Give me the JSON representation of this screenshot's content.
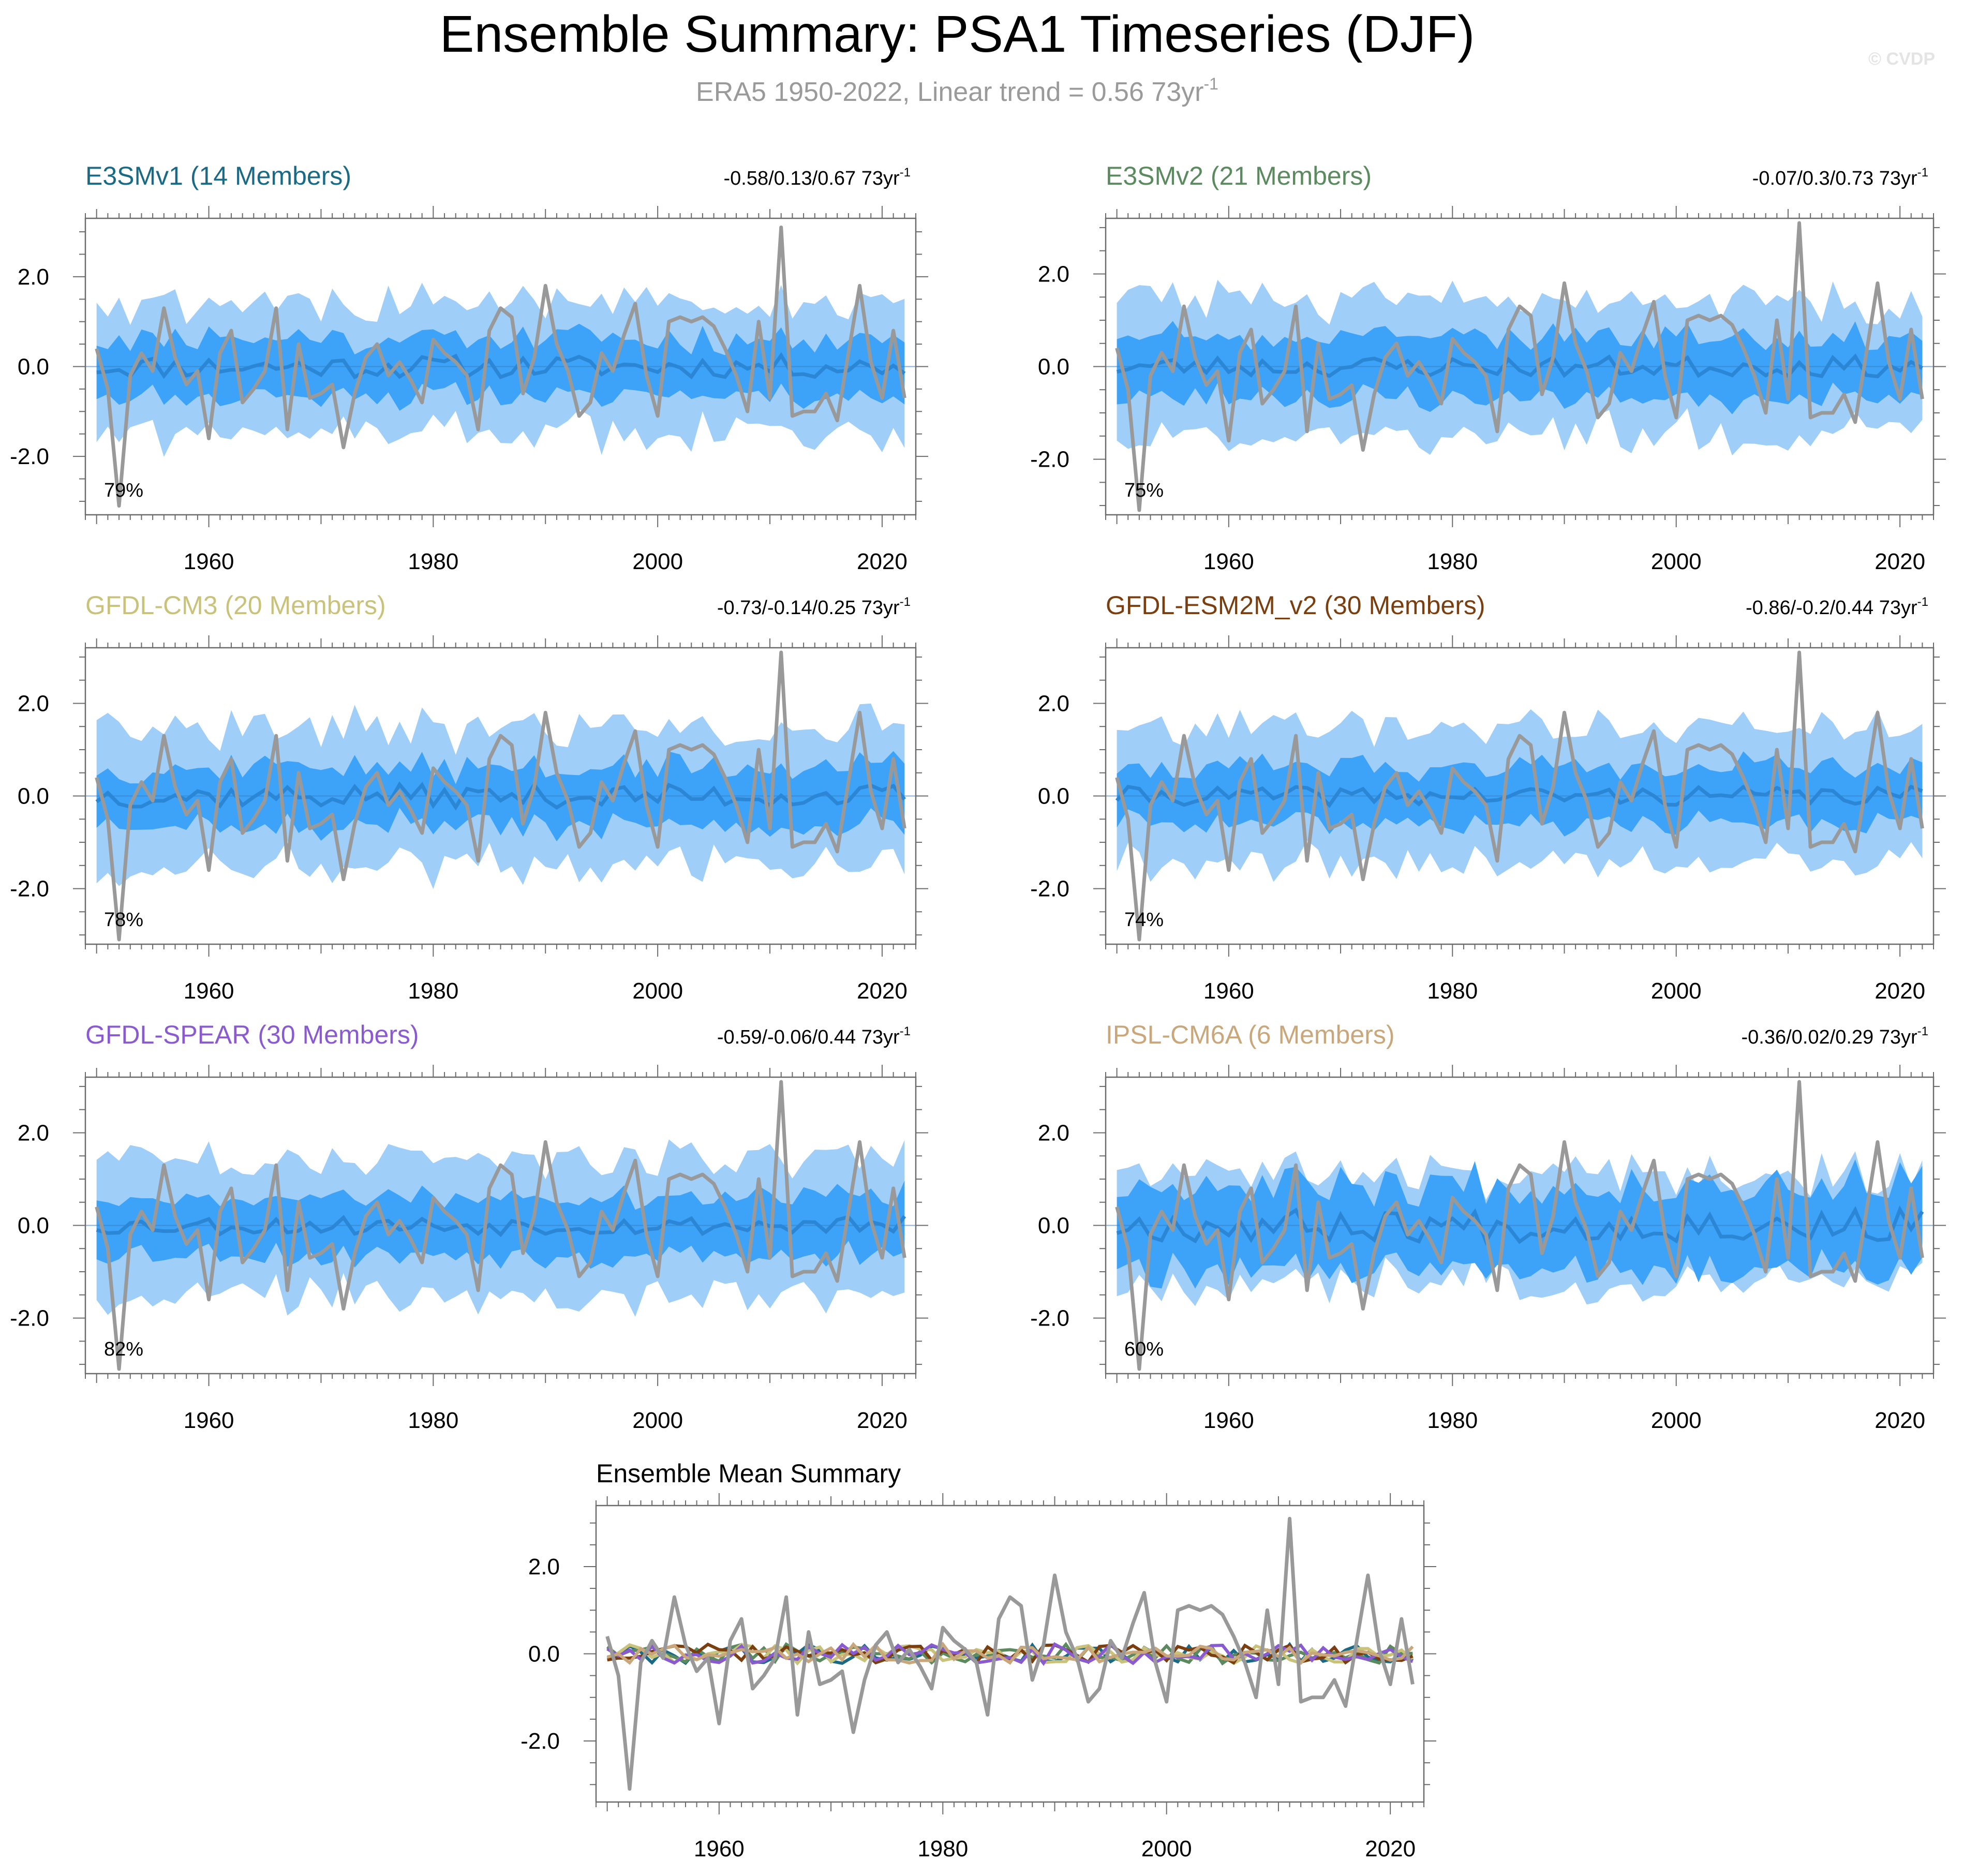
{
  "title": "Ensemble Summary: PSA1 Timeseries (DJF)",
  "subtitle": {
    "text": "ERA5 1950-2022, Linear trend = 0.56 73yr",
    "sup": "-1"
  },
  "watermark": "© CVDP",
  "colors": {
    "obs": "#999999",
    "band_outer": "#9fcef8",
    "band_inner": "#3ca3f8",
    "ens_mean": "#2b86d6"
  },
  "chart_data": [
    {
      "type": "area",
      "title": "E3SMv1 (14 Members)",
      "title_color": "#1a6a86",
      "trend_text": "-0.58/0.13/0.67 73yr",
      "trend_sup": "-1",
      "pct_label": "79%",
      "xlim": [
        1949,
        2023
      ],
      "ylim": [
        -3.3,
        3.3
      ],
      "xticks": [
        1960,
        1980,
        2000,
        2020
      ],
      "yticks": [
        -2.0,
        0.0,
        2.0
      ],
      "ytick_labels": [
        "-2.0",
        "0.0",
        "2.0"
      ],
      "seed": 11,
      "outer_spread": 1.4,
      "inner_spread": 0.6,
      "mean_amp": 0.25
    },
    {
      "type": "area",
      "title": "E3SMv2 (21 Members)",
      "title_color": "#5a8a5e",
      "trend_text": "-0.07/0.3/0.73 73yr",
      "trend_sup": "-1",
      "pct_label": "75%",
      "xlim": [
        1949,
        2023
      ],
      "ylim": [
        -3.2,
        3.2
      ],
      "xticks": [
        1960,
        1980,
        2000,
        2020
      ],
      "yticks": [
        -2.0,
        0.0,
        2.0
      ],
      "ytick_labels": [
        "-2.0",
        "0.0",
        "2.0"
      ],
      "seed": 23,
      "outer_spread": 1.35,
      "inner_spread": 0.65,
      "mean_amp": 0.22
    },
    {
      "type": "area",
      "title": "GFDL-CM3 (20 Members)",
      "title_color": "#c9c27a",
      "trend_text": "-0.73/-0.14/0.25 73yr",
      "trend_sup": "-1",
      "pct_label": "78%",
      "xlim": [
        1949,
        2023
      ],
      "ylim": [
        -3.2,
        3.2
      ],
      "xticks": [
        1960,
        1980,
        2000,
        2020
      ],
      "yticks": [
        -2.0,
        0.0,
        2.0
      ],
      "ytick_labels": [
        "-2.0",
        "0.0",
        "2.0"
      ],
      "seed": 37,
      "outer_spread": 1.4,
      "inner_spread": 0.6,
      "mean_amp": 0.25
    },
    {
      "type": "area",
      "title": "GFDL-ESM2M_v2 (30 Members)",
      "title_color": "#7a3e0f",
      "trend_text": "-0.86/-0.2/0.44 73yr",
      "trend_sup": "-1",
      "pct_label": "74%",
      "xlim": [
        1949,
        2023
      ],
      "ylim": [
        -3.2,
        3.2
      ],
      "xticks": [
        1960,
        1980,
        2000,
        2020
      ],
      "yticks": [
        -2.0,
        0.0,
        2.0
      ],
      "ytick_labels": [
        "-2.0",
        "0.0",
        "2.0"
      ],
      "seed": 41,
      "outer_spread": 1.4,
      "inner_spread": 0.6,
      "mean_amp": 0.2
    },
    {
      "type": "area",
      "title": "GFDL-SPEAR (30 Members)",
      "title_color": "#8a5ad0",
      "trend_text": "-0.59/-0.06/0.44 73yr",
      "trend_sup": "-1",
      "pct_label": "82%",
      "xlim": [
        1949,
        2023
      ],
      "ylim": [
        -3.2,
        3.2
      ],
      "xticks": [
        1960,
        1980,
        2000,
        2020
      ],
      "yticks": [
        -2.0,
        0.0,
        2.0
      ],
      "ytick_labels": [
        "-2.0",
        "0.0",
        "2.0"
      ],
      "seed": 53,
      "outer_spread": 1.4,
      "inner_spread": 0.6,
      "mean_amp": 0.2
    },
    {
      "type": "area",
      "title": "IPSL-CM6A (6 Members)",
      "title_color": "#c9a77a",
      "trend_text": "-0.36/0.02/0.29 73yr",
      "trend_sup": "-1",
      "pct_label": "60%",
      "xlim": [
        1949,
        2023
      ],
      "ylim": [
        -3.2,
        3.2
      ],
      "xticks": [
        1960,
        1980,
        2000,
        2020
      ],
      "yticks": [
        -2.0,
        0.0,
        2.0
      ],
      "ytick_labels": [
        "-2.0",
        "0.0",
        "2.0"
      ],
      "seed": 67,
      "outer_spread": 1.1,
      "inner_spread": 0.85,
      "mean_amp": 0.35
    },
    {
      "type": "line",
      "title": "Ensemble Mean Summary",
      "xlim": [
        1949,
        2023
      ],
      "ylim": [
        -3.4,
        3.4
      ],
      "xticks": [
        1960,
        1980,
        2000,
        2020
      ],
      "yticks": [
        -2.0,
        0.0,
        2.0
      ],
      "ytick_labels": [
        "-2.0",
        "0.0",
        "2.0"
      ],
      "series_colors": [
        "#1a6a86",
        "#5a8a5e",
        "#c9c27a",
        "#7a3e0f",
        "#8a5ad0",
        "#c9a77a"
      ],
      "seed": 79,
      "series_amp": 0.22
    }
  ],
  "observed_series": {
    "name": "ERA5",
    "years": [
      1950,
      1951,
      1952,
      1953,
      1954,
      1955,
      1956,
      1957,
      1958,
      1959,
      1960,
      1961,
      1962,
      1963,
      1964,
      1965,
      1966,
      1967,
      1968,
      1969,
      1970,
      1971,
      1972,
      1973,
      1974,
      1975,
      1976,
      1977,
      1978,
      1979,
      1980,
      1981,
      1982,
      1983,
      1984,
      1985,
      1986,
      1987,
      1988,
      1989,
      1990,
      1991,
      1992,
      1993,
      1994,
      1995,
      1996,
      1997,
      1998,
      1999,
      2000,
      2001,
      2002,
      2003,
      2004,
      2005,
      2006,
      2007,
      2008,
      2009,
      2010,
      2011,
      2012,
      2013,
      2014,
      2015,
      2016,
      2017,
      2018,
      2019,
      2020,
      2021,
      2022
    ],
    "values": [
      0.4,
      -0.5,
      -3.1,
      -0.2,
      0.3,
      -0.1,
      1.3,
      0.2,
      -0.4,
      -0.1,
      -1.6,
      0.3,
      0.8,
      -0.8,
      -0.5,
      -0.1,
      1.3,
      -1.4,
      0.5,
      -0.7,
      -0.6,
      -0.4,
      -1.8,
      -0.6,
      0.2,
      0.5,
      -0.2,
      0.1,
      -0.3,
      -0.8,
      0.6,
      0.3,
      0.1,
      -0.2,
      -1.4,
      0.8,
      1.3,
      1.1,
      -0.6,
      0.2,
      1.8,
      0.5,
      -0.1,
      -1.1,
      -0.8,
      0.3,
      -0.1,
      0.7,
      1.4,
      -0.2,
      -1.1,
      1.0,
      1.1,
      1.0,
      1.1,
      0.9,
      0.4,
      -0.2,
      -1.0,
      1.0,
      -0.7,
      3.1,
      -1.1,
      -1.0,
      -1.0,
      -0.6,
      -1.2,
      0.3,
      1.8,
      0.1,
      -0.7,
      0.8,
      -0.7
    ]
  }
}
